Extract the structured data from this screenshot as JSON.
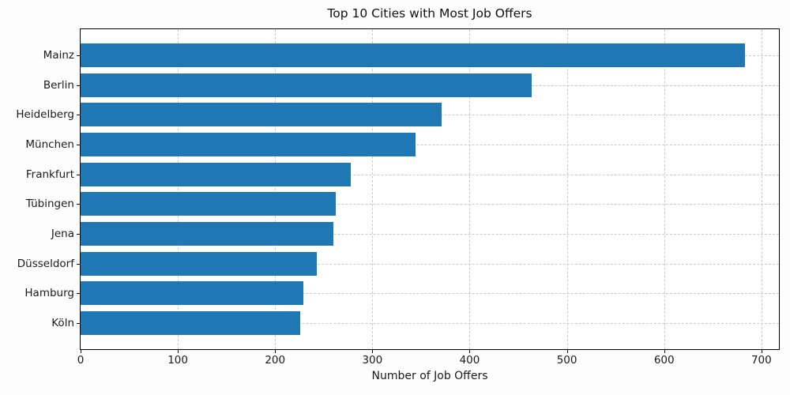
{
  "chart_data": {
    "type": "bar",
    "orientation": "horizontal",
    "title": "Top 10 Cities with Most Job Offers",
    "xlabel": "Number of Job Offers",
    "ylabel": "",
    "categories": [
      "Mainz",
      "Berlin",
      "Heidelberg",
      "München",
      "Frankfurt",
      "Tübingen",
      "Jena",
      "Düsseldorf",
      "Hamburg",
      "Köln"
    ],
    "values": [
      683,
      464,
      371,
      344,
      278,
      262,
      260,
      243,
      229,
      226
    ],
    "x_ticks": [
      0,
      100,
      200,
      300,
      400,
      500,
      600,
      700
    ],
    "xlim": [
      0,
      718
    ],
    "grid": true,
    "grid_style": "dashed",
    "legend": "none",
    "bar_color": "#1f77b4",
    "grid_color": "#c9c9c9",
    "axis_color": "#000000",
    "text_color": "#1a1a1a",
    "background_color": "#fdfdfd"
  }
}
